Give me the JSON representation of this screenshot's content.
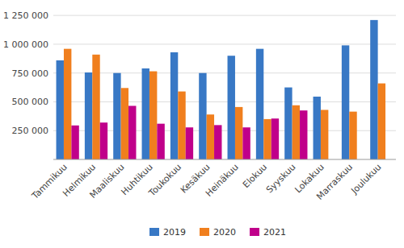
{
  "chart_data": {
    "type": "bar",
    "categories": [
      "Tammikuu",
      "Helmikuu",
      "Maaliskuu",
      "Huhtikuu",
      "Toukokuu",
      "Kesäkuu",
      "Heinäkuu",
      "Elokuu",
      "Syyskuu",
      "Lokakuu",
      "Marraskuu",
      "Joulukuu"
    ],
    "series": [
      {
        "name": "2019",
        "color": "#3878c5",
        "values": [
          860000,
          755000,
          750000,
          790000,
          930000,
          750000,
          900000,
          960000,
          625000,
          545000,
          990000,
          1210000
        ]
      },
      {
        "name": "2020",
        "color": "#f07f1e",
        "values": [
          960000,
          910000,
          620000,
          765000,
          590000,
          390000,
          455000,
          350000,
          470000,
          430000,
          415000,
          660000
        ]
      },
      {
        "name": "2021",
        "color": "#c0008a",
        "values": [
          295000,
          320000,
          465000,
          310000,
          278000,
          298000,
          278000,
          355000,
          425000,
          null,
          null,
          null
        ]
      }
    ],
    "ylim": [
      0,
      1300000
    ],
    "yticks": [
      {
        "value": 250000,
        "label": "250 000"
      },
      {
        "value": 500000,
        "label": "500 000"
      },
      {
        "value": 750000,
        "label": "750 000"
      },
      {
        "value": 1000000,
        "label": "1 000 000"
      },
      {
        "value": 1250000,
        "label": "1 250 000"
      }
    ],
    "grid": true,
    "legend": "bottom"
  }
}
